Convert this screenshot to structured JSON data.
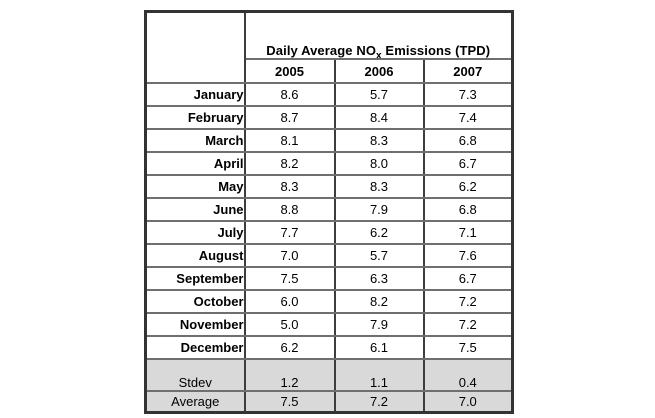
{
  "table": {
    "title": {
      "prefix": "Daily Average NO",
      "subscript": "x",
      "suffix": " Emissions (TPD)"
    },
    "years": [
      "2005",
      "2006",
      "2007"
    ],
    "months": [
      {
        "label": "January",
        "values": [
          "8.6",
          "5.7",
          "7.3"
        ]
      },
      {
        "label": "February",
        "values": [
          "8.7",
          "8.4",
          "7.4"
        ]
      },
      {
        "label": "March",
        "values": [
          "8.1",
          "8.3",
          "6.8"
        ]
      },
      {
        "label": "April",
        "values": [
          "8.2",
          "8.0",
          "6.7"
        ]
      },
      {
        "label": "May",
        "values": [
          "8.3",
          "8.3",
          "6.2"
        ]
      },
      {
        "label": "June",
        "values": [
          "8.8",
          "7.9",
          "6.8"
        ]
      },
      {
        "label": "July",
        "values": [
          "7.7",
          "6.2",
          "7.1"
        ]
      },
      {
        "label": "August",
        "values": [
          "7.0",
          "5.7",
          "7.6"
        ]
      },
      {
        "label": "September",
        "values": [
          "7.5",
          "6.3",
          "6.7"
        ]
      },
      {
        "label": "October",
        "values": [
          "6.0",
          "8.2",
          "7.2"
        ]
      },
      {
        "label": "November",
        "values": [
          "5.0",
          "7.9",
          "7.2"
        ]
      },
      {
        "label": "December",
        "values": [
          "6.2",
          "6.1",
          "7.5"
        ]
      }
    ],
    "summary": [
      {
        "label": "Stdev",
        "values": [
          "1.2",
          "1.1",
          "0.4"
        ]
      },
      {
        "label": "Average",
        "values": [
          "7.5",
          "7.2",
          "7.0"
        ]
      }
    ],
    "colors": {
      "shade": "#d9d9d9",
      "grid_horizontal": "#6f6f6f",
      "grid_vertical": "#3d3d3d",
      "outer_border": "#333333"
    }
  },
  "chart_data": {
    "type": "table",
    "title": "Daily Average NOx Emissions (TPD)",
    "categories": [
      "January",
      "February",
      "March",
      "April",
      "May",
      "June",
      "July",
      "August",
      "September",
      "October",
      "November",
      "December"
    ],
    "series": [
      {
        "name": "2005",
        "values": [
          8.6,
          8.7,
          8.1,
          8.2,
          8.3,
          8.8,
          7.7,
          7.0,
          7.5,
          6.0,
          5.0,
          6.2
        ],
        "stdev": 1.2,
        "average": 7.5
      },
      {
        "name": "2006",
        "values": [
          5.7,
          8.4,
          8.3,
          8.0,
          8.3,
          7.9,
          6.2,
          5.7,
          6.3,
          8.2,
          7.9,
          6.1
        ],
        "stdev": 1.1,
        "average": 7.2
      },
      {
        "name": "2007",
        "values": [
          7.3,
          7.4,
          6.8,
          6.7,
          6.2,
          6.8,
          7.1,
          7.6,
          6.7,
          7.2,
          7.2,
          7.5
        ],
        "stdev": 0.4,
        "average": 7.0
      }
    ]
  }
}
